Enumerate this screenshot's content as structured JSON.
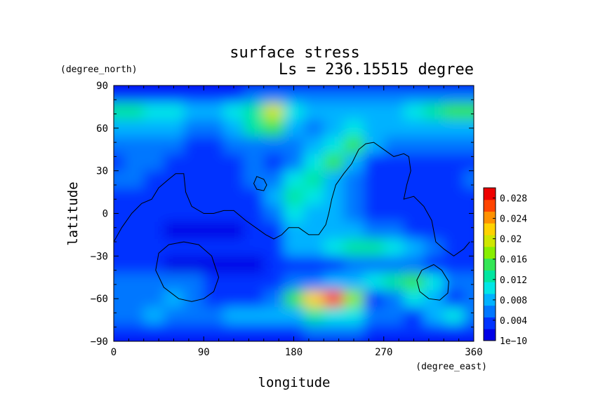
{
  "chart_data": {
    "type": "heatmap",
    "title": "surface stress",
    "subtitle": "Ls = 236.15515 degree",
    "xlabel": "longitude",
    "ylabel": "latitude",
    "x_unit": "(degree_east)",
    "y_unit": "(degree_north)",
    "xlim": [
      0,
      360
    ],
    "ylim": [
      -90,
      90
    ],
    "x_ticks": [
      0,
      90,
      180,
      270,
      360
    ],
    "y_ticks": [
      90,
      60,
      30,
      0,
      -30,
      -60,
      -90
    ],
    "x_tick_labels": [
      "0",
      "90",
      "180",
      "270",
      "360"
    ],
    "y_tick_labels": [
      "90",
      "60",
      "30",
      "0",
      "−30",
      "−60",
      "−90"
    ],
    "grid": false,
    "colorbar": {
      "min": 1e-10,
      "max": 0.03,
      "tick_labels": [
        "1e−10",
        "0.004",
        "0.008",
        "0.012",
        "0.016",
        "0.02",
        "0.024",
        "0.028"
      ],
      "tick_values": [
        0,
        0.004,
        0.008,
        0.012,
        0.016,
        0.02,
        0.024,
        0.028
      ],
      "colors": [
        "#0000e6",
        "#0033ff",
        "#0077ff",
        "#00b2ff",
        "#00e6e6",
        "#00e6a0",
        "#33e655",
        "#88ee00",
        "#cfe600",
        "#ffd200",
        "#ff9100",
        "#ff4400",
        "#ee0000"
      ]
    },
    "data_lon": [
      0,
      20,
      40,
      60,
      80,
      100,
      120,
      140,
      160,
      180,
      200,
      220,
      240,
      260,
      280,
      300,
      320,
      340,
      360
    ],
    "data_lat": [
      84,
      72,
      60,
      48,
      36,
      24,
      12,
      0,
      -12,
      -24,
      -36,
      -48,
      -60,
      -72,
      -84
    ],
    "values": [
      [
        0.004,
        0.004,
        0.003,
        0.003,
        0.004,
        0.004,
        0.004,
        0.005,
        0.006,
        0.006,
        0.006,
        0.006,
        0.006,
        0.006,
        0.006,
        0.005,
        0.006,
        0.006,
        0.006
      ],
      [
        0.013,
        0.012,
        0.011,
        0.01,
        0.009,
        0.009,
        0.01,
        0.013,
        0.019,
        0.01,
        0.009,
        0.009,
        0.009,
        0.009,
        0.009,
        0.01,
        0.013,
        0.016,
        0.015
      ],
      [
        0.008,
        0.009,
        0.008,
        0.007,
        0.006,
        0.006,
        0.008,
        0.012,
        0.015,
        0.007,
        0.006,
        0.008,
        0.01,
        0.009,
        0.008,
        0.008,
        0.009,
        0.009,
        0.008
      ],
      [
        0.005,
        0.006,
        0.006,
        0.005,
        0.004,
        0.004,
        0.005,
        0.006,
        0.006,
        0.005,
        0.009,
        0.011,
        0.016,
        0.007,
        0.005,
        0.005,
        0.005,
        0.005,
        0.005
      ],
      [
        0.004,
        0.005,
        0.005,
        0.004,
        0.003,
        0.003,
        0.004,
        0.006,
        0.004,
        0.006,
        0.01,
        0.014,
        0.008,
        0.004,
        0.004,
        0.004,
        0.004,
        0.004,
        0.004
      ],
      [
        0.005,
        0.005,
        0.004,
        0.003,
        0.003,
        0.003,
        0.003,
        0.005,
        0.006,
        0.01,
        0.013,
        0.009,
        0.006,
        0.004,
        0.004,
        0.004,
        0.004,
        0.004,
        0.005
      ],
      [
        0.004,
        0.004,
        0.004,
        0.003,
        0.003,
        0.003,
        0.003,
        0.004,
        0.007,
        0.012,
        0.01,
        0.007,
        0.005,
        0.004,
        0.004,
        0.003,
        0.003,
        0.004,
        0.004
      ],
      [
        0.004,
        0.004,
        0.003,
        0.003,
        0.003,
        0.003,
        0.003,
        0.004,
        0.006,
        0.01,
        0.009,
        0.007,
        0.005,
        0.004,
        0.003,
        0.003,
        0.003,
        0.003,
        0.004
      ],
      [
        0.003,
        0.003,
        0.003,
        0.002,
        0.002,
        0.002,
        0.002,
        0.003,
        0.004,
        0.008,
        0.009,
        0.009,
        0.008,
        0.006,
        0.005,
        0.004,
        0.003,
        0.003,
        0.003
      ],
      [
        0.004,
        0.004,
        0.003,
        0.003,
        0.003,
        0.003,
        0.003,
        0.003,
        0.004,
        0.007,
        0.009,
        0.011,
        0.012,
        0.012,
        0.01,
        0.007,
        0.005,
        0.004,
        0.004
      ],
      [
        0.003,
        0.003,
        0.003,
        0.002,
        0.002,
        0.002,
        0.002,
        0.002,
        0.003,
        0.003,
        0.004,
        0.004,
        0.005,
        0.005,
        0.006,
        0.005,
        0.004,
        0.003,
        0.003
      ],
      [
        0.005,
        0.006,
        0.006,
        0.006,
        0.005,
        0.004,
        0.004,
        0.004,
        0.004,
        0.005,
        0.006,
        0.007,
        0.009,
        0.01,
        0.013,
        0.015,
        0.01,
        0.006,
        0.005
      ],
      [
        0.006,
        0.005,
        0.005,
        0.007,
        0.006,
        0.004,
        0.004,
        0.004,
        0.006,
        0.016,
        0.022,
        0.026,
        0.018,
        0.004,
        0.005,
        0.01,
        0.008,
        0.004,
        0.006
      ],
      [
        0.005,
        0.006,
        0.009,
        0.006,
        0.005,
        0.006,
        0.007,
        0.008,
        0.009,
        0.008,
        0.012,
        0.011,
        0.01,
        0.005,
        0.005,
        0.004,
        0.009,
        0.01,
        0.006
      ],
      [
        0.004,
        0.004,
        0.004,
        0.004,
        0.004,
        0.004,
        0.004,
        0.004,
        0.004,
        0.004,
        0.005,
        0.005,
        0.005,
        0.004,
        0.004,
        0.004,
        0.004,
        0.004,
        0.004
      ]
    ],
    "contours": [
      {
        "name": "dichotomy-boundary",
        "points": [
          [
            0,
            -20
          ],
          [
            8,
            -10
          ],
          [
            18,
            0
          ],
          [
            28,
            7
          ],
          [
            38,
            10
          ],
          [
            45,
            18
          ],
          [
            55,
            24
          ],
          [
            62,
            28
          ],
          [
            70,
            28
          ],
          [
            72,
            15
          ],
          [
            78,
            5
          ],
          [
            90,
            0
          ],
          [
            100,
            0
          ],
          [
            110,
            2
          ],
          [
            120,
            2
          ],
          [
            132,
            -5
          ],
          [
            142,
            -10
          ],
          [
            152,
            -15
          ],
          [
            160,
            -18
          ],
          [
            168,
            -15
          ],
          [
            175,
            -10
          ],
          [
            185,
            -10
          ],
          [
            195,
            -15
          ],
          [
            205,
            -15
          ],
          [
            212,
            -8
          ],
          [
            215,
            0
          ],
          [
            218,
            10
          ],
          [
            222,
            20
          ],
          [
            230,
            28
          ],
          [
            238,
            35
          ],
          [
            245,
            45
          ],
          [
            252,
            49
          ],
          [
            260,
            50
          ],
          [
            270,
            45
          ],
          [
            280,
            40
          ],
          [
            290,
            42
          ],
          [
            295,
            40
          ],
          [
            297,
            30
          ],
          [
            293,
            20
          ],
          [
            290,
            10
          ],
          [
            300,
            12
          ],
          [
            310,
            5
          ],
          [
            318,
            -5
          ],
          [
            322,
            -20
          ],
          [
            330,
            -25
          ],
          [
            340,
            -30
          ],
          [
            350,
            -25
          ],
          [
            356,
            -20
          ]
        ]
      },
      {
        "name": "hellas-basin",
        "closed": true,
        "points": [
          [
            70,
            -20
          ],
          [
            85,
            -22
          ],
          [
            98,
            -30
          ],
          [
            105,
            -45
          ],
          [
            100,
            -55
          ],
          [
            90,
            -60
          ],
          [
            78,
            -62
          ],
          [
            65,
            -60
          ],
          [
            50,
            -52
          ],
          [
            42,
            -40
          ],
          [
            45,
            -28
          ],
          [
            55,
            -22
          ]
        ]
      },
      {
        "name": "argyre-basin",
        "closed": true,
        "points": [
          [
            320,
            -36
          ],
          [
            328,
            -40
          ],
          [
            335,
            -48
          ],
          [
            334,
            -56
          ],
          [
            326,
            -61
          ],
          [
            315,
            -60
          ],
          [
            306,
            -55
          ],
          [
            303,
            -47
          ],
          [
            308,
            -40
          ]
        ]
      },
      {
        "name": "elysium-loop",
        "closed": true,
        "points": [
          [
            143,
            26
          ],
          [
            150,
            24
          ],
          [
            153,
            20
          ],
          [
            150,
            16
          ],
          [
            143,
            17
          ],
          [
            140,
            21
          ]
        ]
      }
    ]
  }
}
